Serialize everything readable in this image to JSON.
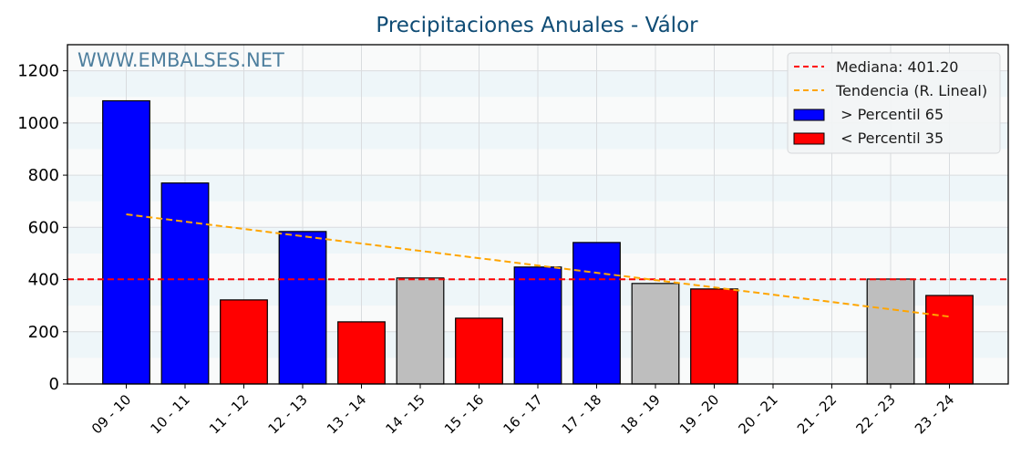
{
  "chart_data": {
    "type": "bar",
    "title": "Precipitaciones Anuales - Válor",
    "watermark": "WWW.EMBALSES.NET",
    "xlabel": "",
    "ylabel": "",
    "ylim": [
      0,
      1300
    ],
    "yticks": [
      0,
      200,
      400,
      600,
      800,
      1000,
      1200
    ],
    "grid": true,
    "legend_position": "upper right",
    "categories": [
      "09 - 10",
      "10 - 11",
      "11 - 12",
      "12 - 13",
      "13 - 14",
      "14 - 15",
      "15 - 16",
      "16 - 17",
      "17 - 18",
      "18 - 19",
      "19 - 20",
      "20 - 21",
      "21 - 22",
      "22 - 23",
      "23 - 24"
    ],
    "values": [
      1085,
      770,
      322,
      584,
      238,
      406,
      252,
      448,
      542,
      385,
      364,
      null,
      null,
      402,
      339
    ],
    "bar_classes": [
      "high",
      "high",
      "low",
      "high",
      "low",
      "mid",
      "low",
      "high",
      "high",
      "mid",
      "low",
      null,
      null,
      "mid",
      "low"
    ],
    "median": 401.2,
    "trend": {
      "start_index": 0,
      "start_value": 650,
      "end_index": 14,
      "end_value": 258
    },
    "colors": {
      "high": "#0000ff",
      "low": "#ff0000",
      "mid": "#bebebe",
      "median_line": "#ff0000",
      "trend_line": "#ffa500",
      "band": "#eef6f9",
      "plot_bg": "#f9fafa",
      "title": "#0f4c75",
      "watermark": "#4e7f9e"
    },
    "legend": [
      {
        "type": "line",
        "color": "#ff0000",
        "label": "Mediana: 401.20"
      },
      {
        "type": "line",
        "color": "#ffa500",
        "label": "Tendencia (R. Lineal)"
      },
      {
        "type": "patch",
        "color": "#0000ff",
        "label": " > Percentil 65"
      },
      {
        "type": "patch",
        "color": "#ff0000",
        "label": " < Percentil 35"
      }
    ]
  }
}
